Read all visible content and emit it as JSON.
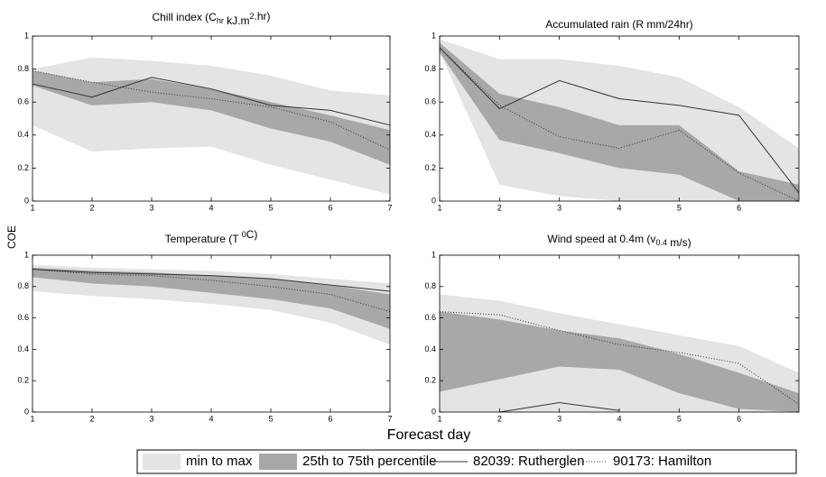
{
  "figure": {
    "xlabel": "Forecast day",
    "ylabel": "COE",
    "legend": [
      {
        "name": "min to max",
        "color": "#e4e4e4"
      },
      {
        "name": "25th to 75th percentile",
        "color": "#a8a8a8"
      },
      {
        "name": "82039: Rutherglen",
        "color": "#333333"
      },
      {
        "name": "90173: Hamilton",
        "color": "#333333"
      }
    ]
  },
  "chart_data": [
    {
      "type": "band-line",
      "title": [
        "Chill index (C",
        {
          "sub": "hr"
        },
        " kJ.m",
        {
          "sup": "2"
        },
        ".hr)"
      ],
      "x": [
        1,
        2,
        3,
        4,
        5,
        6,
        7
      ],
      "xlim": [
        1,
        7
      ],
      "xticks": [
        1,
        2,
        3,
        4,
        5,
        6,
        7
      ],
      "ylim": [
        0,
        1
      ],
      "yticks": [
        0,
        0.2,
        0.4,
        0.6,
        0.8,
        1
      ],
      "min": [
        0.46,
        0.3,
        0.32,
        0.33,
        0.22,
        0.13,
        0.04
      ],
      "max": [
        0.8,
        0.87,
        0.85,
        0.82,
        0.76,
        0.67,
        0.64
      ],
      "p25": [
        0.7,
        0.58,
        0.6,
        0.55,
        0.44,
        0.36,
        0.22
      ],
      "p75": [
        0.79,
        0.72,
        0.74,
        0.68,
        0.6,
        0.52,
        0.43
      ],
      "rutherglen": [
        0.71,
        0.63,
        0.75,
        0.68,
        0.58,
        0.55,
        0.46
      ],
      "hamilton": [
        0.79,
        0.72,
        0.66,
        0.62,
        0.57,
        0.48,
        0.31
      ]
    },
    {
      "type": "band-line",
      "title": [
        "Accumulated rain (R mm/24hr)"
      ],
      "x": [
        1,
        2,
        3,
        4,
        5,
        6,
        7
      ],
      "xlim": [
        1,
        7
      ],
      "xticks": [
        1,
        2,
        3,
        4,
        5,
        6
      ],
      "ylim": [
        0,
        1
      ],
      "yticks": [
        0,
        0.2,
        0.4,
        0.6,
        0.8,
        1
      ],
      "min": [
        0.9,
        0.1,
        0.03,
        0,
        0,
        0,
        0
      ],
      "max": [
        0.98,
        0.86,
        0.86,
        0.82,
        0.75,
        0.57,
        0.32
      ],
      "p25": [
        0.9,
        0.37,
        0.29,
        0.2,
        0.16,
        0,
        0
      ],
      "p75": [
        0.96,
        0.65,
        0.57,
        0.46,
        0.46,
        0.18,
        0.1
      ],
      "rutherglen": [
        0.93,
        0.56,
        0.73,
        0.62,
        0.58,
        0.52,
        0.05
      ],
      "hamilton": [
        0.93,
        0.58,
        0.39,
        0.32,
        0.43,
        0.17,
        0
      ]
    },
    {
      "type": "band-line",
      "title": [
        "Temperature (T ",
        {
          "sup": "0"
        },
        "C)"
      ],
      "x": [
        1,
        2,
        3,
        4,
        5,
        6,
        7
      ],
      "xlim": [
        1,
        7
      ],
      "xticks": [
        1,
        2,
        3,
        4,
        5,
        6,
        7
      ],
      "ylim": [
        0,
        1
      ],
      "yticks": [
        0,
        0.2,
        0.4,
        0.6,
        0.8,
        1
      ],
      "min": [
        0.77,
        0.74,
        0.72,
        0.69,
        0.65,
        0.57,
        0.43
      ],
      "max": [
        0.94,
        0.92,
        0.91,
        0.9,
        0.88,
        0.85,
        0.82
      ],
      "p25": [
        0.86,
        0.82,
        0.8,
        0.76,
        0.72,
        0.66,
        0.53
      ],
      "p75": [
        0.92,
        0.9,
        0.89,
        0.87,
        0.85,
        0.81,
        0.75
      ],
      "rutherglen": [
        0.91,
        0.89,
        0.88,
        0.87,
        0.85,
        0.81,
        0.77
      ],
      "hamilton": [
        0.91,
        0.88,
        0.87,
        0.84,
        0.8,
        0.75,
        0.64
      ]
    },
    {
      "type": "band-line",
      "title": [
        "Wind speed at 0.4m (v",
        {
          "sub": "0.4"
        },
        " m/s)"
      ],
      "x": [
        1,
        2,
        3,
        4,
        5,
        6,
        7
      ],
      "xlim": [
        1,
        7
      ],
      "xticks": [
        1,
        2,
        3,
        4,
        5,
        6
      ],
      "ylim": [
        0,
        1
      ],
      "yticks": [
        0,
        0.2,
        0.4,
        0.6,
        0.8,
        1
      ],
      "min": [
        0,
        0,
        0,
        0,
        0,
        0,
        0
      ],
      "max": [
        0.75,
        0.71,
        0.63,
        0.56,
        0.49,
        0.42,
        0.25
      ],
      "p25": [
        0.13,
        0.21,
        0.29,
        0.27,
        0.12,
        0.02,
        0
      ],
      "p75": [
        0.64,
        0.59,
        0.52,
        0.47,
        0.37,
        0.25,
        0.12
      ],
      "rutherglen": [
        null,
        0,
        0.06,
        0.01,
        null,
        null,
        null
      ],
      "hamilton": [
        0.64,
        0.62,
        0.52,
        0.43,
        0.38,
        0.31,
        0.05
      ]
    }
  ]
}
